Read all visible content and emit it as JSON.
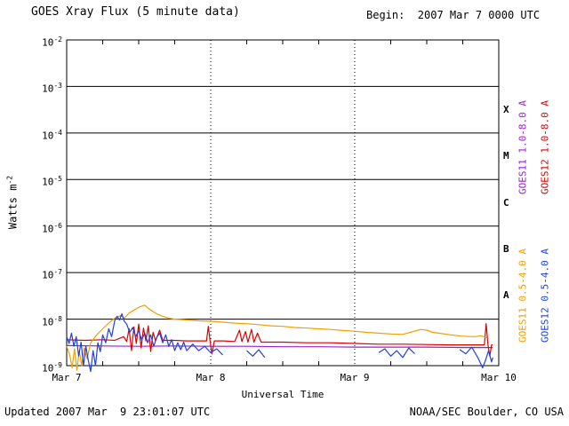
{
  "header": {
    "title": "GOES Xray Flux (5 minute data)",
    "begin": "Begin:  2007 Mar 7 0000 UTC"
  },
  "footer": {
    "updated": "Updated 2007 Mar  9 23:01:07 UTC",
    "credit": "NOAA/SEC Boulder, CO USA"
  },
  "axes": {
    "ylabel_base": "Watts m",
    "ylabel_exp": "-2",
    "xlabel": "Universal Time",
    "y_exponents": [
      -2,
      -3,
      -4,
      -5,
      -6,
      -7,
      -8,
      -9
    ],
    "y_range_exp": [
      -2,
      -9
    ],
    "x_ticks": [
      {
        "hours": 0,
        "label": "Mar 7"
      },
      {
        "hours": 24,
        "label": "Mar 8"
      },
      {
        "hours": 48,
        "label": "Mar 9"
      },
      {
        "hours": 72,
        "label": "Mar 10"
      }
    ]
  },
  "flare_classes": [
    {
      "label": "X",
      "exp_center": -3.5
    },
    {
      "label": "M",
      "exp_center": -4.5
    },
    {
      "label": "C",
      "exp_center": -5.5
    },
    {
      "label": "B",
      "exp_center": -6.5
    },
    {
      "label": "A",
      "exp_center": -7.5
    }
  ],
  "legend": [
    {
      "label": "GOES11 1.0-8.0 A",
      "color": "#9920cc",
      "position": "inner-top"
    },
    {
      "label": "GOES12 1.0-8.0 A",
      "color": "#dd0000",
      "position": "outer-top"
    },
    {
      "label": "GOES11 0.5-4.0 A",
      "color": "#f0a000",
      "position": "inner-bottom"
    },
    {
      "label": "GOES12 0.5-4.0 A",
      "color": "#2040dd",
      "position": "outer-bottom"
    }
  ],
  "chart_data": {
    "type": "line",
    "title": "GOES Xray Flux (5 minute data)",
    "xlabel": "Universal Time",
    "ylabel": "Watts m^-2",
    "x_unit": "hours since 2007 Mar 7 0000 UTC",
    "xlim": [
      0,
      72
    ],
    "ylim": [
      1e-09,
      0.01
    ],
    "grid": {
      "h_solid_exponents": [
        -3,
        -4,
        -5,
        -6,
        -7,
        -8
      ],
      "v_dotted_hours": [
        24,
        48
      ]
    },
    "series": [
      {
        "name": "GOES11 1.0-8.0 A",
        "color": "#9920cc",
        "segments": [
          [
            [
              0,
              2.7e-09
            ],
            [
              6,
              2.65e-09
            ],
            [
              12,
              2.6e-09
            ],
            [
              18,
              2.65e-09
            ],
            [
              24,
              2.6e-09
            ],
            [
              30,
              2.6e-09
            ],
            [
              36,
              2.55e-09
            ],
            [
              42,
              2.55e-09
            ],
            [
              48,
              2.5e-09
            ],
            [
              54,
              2.5e-09
            ],
            [
              60,
              2.5e-09
            ],
            [
              66,
              2.45e-09
            ],
            [
              71,
              2.45e-09
            ]
          ]
        ]
      },
      {
        "name": "GOES12 1.0-8.0 A",
        "color": "#dd0000",
        "segments": [
          [
            [
              0,
              3.6e-09
            ],
            [
              3,
              3.5e-09
            ],
            [
              6,
              3.6e-09
            ],
            [
              8,
              3.5e-09
            ],
            [
              9.5,
              4.2e-09
            ],
            [
              10,
              3.3e-09
            ],
            [
              10.4,
              6.2e-09
            ],
            [
              10.8,
              2.1e-09
            ],
            [
              11.2,
              6.8e-09
            ],
            [
              11.6,
              3e-09
            ],
            [
              12.0,
              7.8e-09
            ],
            [
              12.4,
              2.4e-09
            ],
            [
              12.8,
              6.4e-09
            ],
            [
              13.2,
              3.4e-09
            ],
            [
              13.6,
              7.2e-09
            ],
            [
              14.0,
              2e-09
            ],
            [
              14.4,
              5.2e-09
            ],
            [
              14.8,
              3.4e-09
            ],
            [
              15.5,
              5.8e-09
            ],
            [
              16,
              3.5e-09
            ],
            [
              18,
              3.5e-09
            ],
            [
              20,
              3.4e-09
            ],
            [
              22,
              3.4e-09
            ],
            [
              23.3,
              3.4e-09
            ],
            [
              23.6,
              7e-09
            ],
            [
              23.9,
              3.4e-09
            ],
            [
              24.2,
              1.8e-09
            ],
            [
              24.6,
              3.4e-09
            ],
            [
              26,
              3.4e-09
            ],
            [
              28,
              3.3e-09
            ],
            [
              28.8,
              5.8e-09
            ],
            [
              29.2,
              3.3e-09
            ],
            [
              29.8,
              5.4e-09
            ],
            [
              30.2,
              3.2e-09
            ],
            [
              30.8,
              6e-09
            ],
            [
              31.2,
              3.2e-09
            ],
            [
              31.8,
              5e-09
            ],
            [
              32.4,
              3.2e-09
            ],
            [
              34,
              3.2e-09
            ],
            [
              36,
              3.2e-09
            ],
            [
              40,
              3.1e-09
            ],
            [
              44,
              3.1e-09
            ],
            [
              48,
              3e-09
            ],
            [
              52,
              2.9e-09
            ],
            [
              56,
              2.9e-09
            ],
            [
              60,
              2.85e-09
            ],
            [
              64,
              2.8e-09
            ],
            [
              68,
              2.8e-09
            ],
            [
              69.6,
              2.8e-09
            ],
            [
              69.9,
              8e-09
            ],
            [
              70.2,
              2.8e-09
            ],
            [
              70.5,
              1.6e-09
            ],
            [
              70.8,
              2.8e-09
            ],
            [
              71,
              2.8e-09
            ]
          ]
        ]
      },
      {
        "name": "GOES11 0.5-4.0 A",
        "color": "#f0a000",
        "segments": [
          [
            [
              0,
              2.6e-09
            ],
            [
              0.5,
              1.7e-09
            ],
            [
              0.9,
              9e-10
            ],
            [
              1.3,
              2.3e-09
            ],
            [
              1.7,
              8e-10
            ],
            [
              2.1,
              2.1e-09
            ],
            [
              2.5,
              1e-09
            ],
            [
              2.9,
              2.4e-09
            ],
            [
              3.4,
              1.4e-09
            ],
            [
              4,
              3.1e-09
            ],
            [
              5,
              4.6e-09
            ],
            [
              6,
              6.2e-09
            ],
            [
              7,
              8.2e-09
            ],
            [
              8,
              1.05e-08
            ],
            [
              9,
              1.2e-08
            ],
            [
              9.6,
              1.05e-08
            ],
            [
              10.4,
              1.35e-08
            ],
            [
              11,
              1.5e-08
            ],
            [
              12,
              1.8e-08
            ],
            [
              13,
              2e-08
            ],
            [
              13.6,
              1.7e-08
            ],
            [
              14.4,
              1.45e-08
            ],
            [
              15,
              1.3e-08
            ],
            [
              16,
              1.15e-08
            ],
            [
              17,
              1.05e-08
            ],
            [
              18,
              1e-08
            ],
            [
              20,
              9.6e-09
            ],
            [
              22,
              9.2e-09
            ],
            [
              24,
              9e-09
            ],
            [
              26,
              8.6e-09
            ],
            [
              28,
              8.2e-09
            ],
            [
              30,
              8e-09
            ],
            [
              32,
              7.6e-09
            ],
            [
              34,
              7.2e-09
            ],
            [
              36,
              7e-09
            ],
            [
              38,
              6.6e-09
            ],
            [
              40,
              6.4e-09
            ],
            [
              42,
              6.2e-09
            ],
            [
              44,
              6e-09
            ],
            [
              46,
              5.7e-09
            ],
            [
              48,
              5.5e-09
            ],
            [
              50,
              5.2e-09
            ],
            [
              52,
              5e-09
            ],
            [
              54,
              4.8e-09
            ],
            [
              56,
              4.7e-09
            ],
            [
              57.5,
              5.3e-09
            ],
            [
              59,
              6e-09
            ],
            [
              60,
              5.8e-09
            ],
            [
              61,
              5.2e-09
            ],
            [
              62,
              5e-09
            ],
            [
              64,
              4.6e-09
            ],
            [
              66,
              4.3e-09
            ],
            [
              68,
              4.2e-09
            ],
            [
              69,
              4.4e-09
            ],
            [
              70,
              4e-09
            ]
          ]
        ]
      },
      {
        "name": "GOES12 0.5-4.0 A",
        "color": "#2040dd",
        "segments": [
          [
            [
              0,
              4.2e-09
            ],
            [
              0.4,
              3e-09
            ],
            [
              0.8,
              5e-09
            ],
            [
              1.2,
              2.6e-09
            ],
            [
              1.6,
              4.2e-09
            ],
            [
              2.0,
              1.6e-09
            ],
            [
              2.4,
              3.2e-09
            ],
            [
              2.8,
              1e-09
            ],
            [
              3.2,
              2.6e-09
            ],
            [
              3.6,
              1.3e-09
            ],
            [
              4.0,
              7.5e-10
            ],
            [
              4.4,
              2.1e-09
            ],
            [
              4.8,
              1e-09
            ],
            [
              5.2,
              3.1e-09
            ],
            [
              5.6,
              2e-09
            ],
            [
              6.0,
              4.6e-09
            ],
            [
              6.5,
              3.1e-09
            ],
            [
              7.0,
              6.2e-09
            ],
            [
              7.5,
              4.2e-09
            ],
            [
              8.0,
              9.2e-09
            ],
            [
              8.4,
              1.15e-08
            ],
            [
              8.8,
              9.6e-09
            ],
            [
              9.2,
              1.3e-08
            ],
            [
              9.6,
              9e-09
            ],
            [
              10.0,
              7.8e-09
            ],
            [
              10.5,
              5.2e-09
            ],
            [
              11.0,
              6.6e-09
            ],
            [
              11.5,
              4.2e-09
            ],
            [
              12.0,
              5.6e-09
            ],
            [
              12.5,
              3.6e-09
            ],
            [
              13.0,
              5e-09
            ],
            [
              13.5,
              3.1e-09
            ],
            [
              14.0,
              4.6e-09
            ],
            [
              14.5,
              2.6e-09
            ],
            [
              15.0,
              4.1e-09
            ],
            [
              15.5,
              5e-09
            ],
            [
              16.0,
              3.1e-09
            ],
            [
              16.5,
              4.6e-09
            ],
            [
              17.0,
              2.6e-09
            ],
            [
              17.5,
              3.6e-09
            ],
            [
              18.0,
              2.1e-09
            ],
            [
              18.5,
              3.1e-09
            ],
            [
              19.0,
              2.2e-09
            ],
            [
              19.5,
              3.2e-09
            ],
            [
              20.0,
              2.1e-09
            ],
            [
              21,
              2.9e-09
            ],
            [
              22,
              2.1e-09
            ],
            [
              23,
              2.6e-09
            ],
            [
              24,
              1.9e-09
            ],
            [
              25,
              2.3e-09
            ],
            [
              26,
              1.7e-09
            ]
          ],
          [
            [
              30,
              2.1e-09
            ],
            [
              31,
              1.6e-09
            ],
            [
              32,
              2.2e-09
            ],
            [
              33,
              1.5e-09
            ]
          ],
          [
            [
              52,
              1.9e-09
            ],
            [
              53,
              2.3e-09
            ],
            [
              54,
              1.6e-09
            ],
            [
              55,
              2.1e-09
            ],
            [
              56,
              1.5e-09
            ],
            [
              57,
              2.4e-09
            ],
            [
              58,
              1.8e-09
            ]
          ],
          [
            [
              65.5,
              2.2e-09
            ],
            [
              66.5,
              1.8e-09
            ],
            [
              67.5,
              2.5e-09
            ],
            [
              68.5,
              1.5e-09
            ],
            [
              69.3,
              9e-10
            ],
            [
              69.8,
              1.3e-09
            ],
            [
              70.3,
              2.1e-09
            ],
            [
              70.8,
              1.2e-09
            ],
            [
              71,
              1.5e-09
            ]
          ]
        ]
      }
    ]
  }
}
